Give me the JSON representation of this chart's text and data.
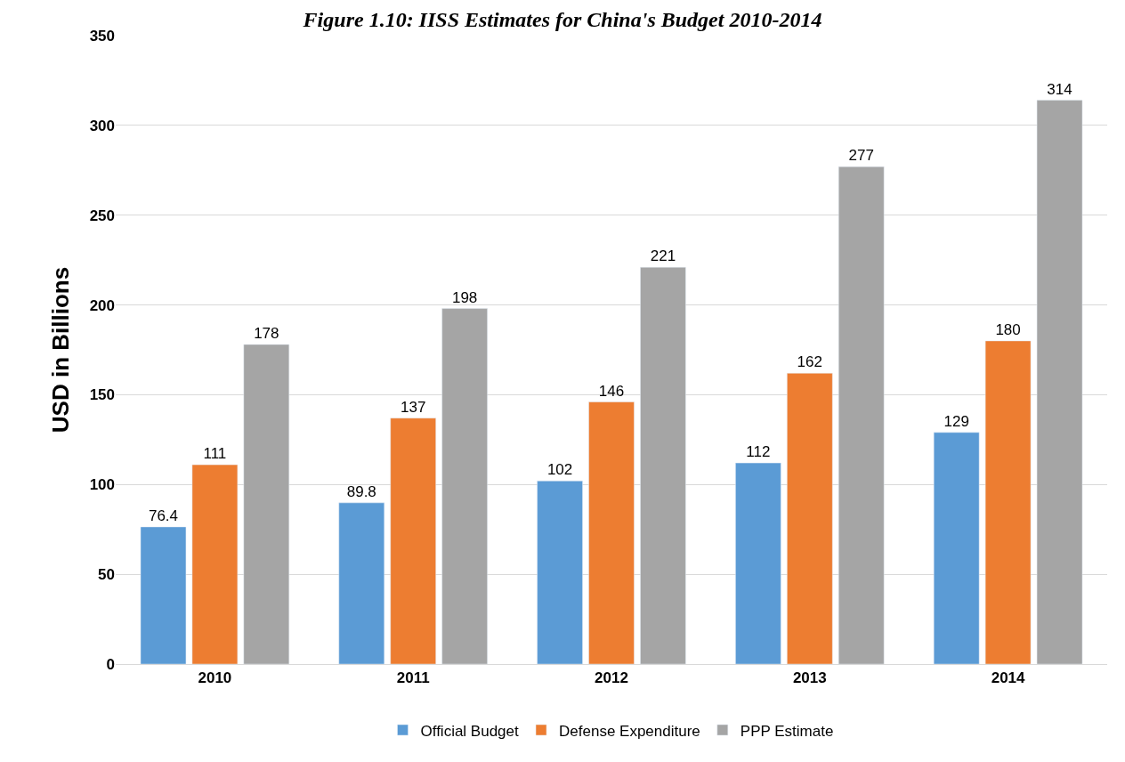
{
  "chart_data": {
    "type": "bar",
    "title": "Figure 1.10: IISS Estimates for China's Budget 2010-2014",
    "categories": [
      "2010",
      "2011",
      "2012",
      "2013",
      "2014"
    ],
    "series": [
      {
        "name": "Official Budget",
        "color": "#5b9bd5",
        "values": [
          76.4,
          89.8,
          102,
          112,
          129
        ]
      },
      {
        "name": "Defense Expenditure",
        "color": "#ed7d31",
        "values": [
          111,
          137,
          146,
          162,
          180
        ]
      },
      {
        "name": "PPP Estimate",
        "color": "#a5a5a5",
        "values": [
          178,
          198,
          221,
          277,
          314
        ]
      }
    ],
    "ylabel": "USD in Billions",
    "ylim": [
      0,
      350
    ],
    "yticks": [
      0,
      50,
      100,
      150,
      200,
      250,
      300,
      350
    ],
    "grid": "y",
    "legend": "bottom",
    "data_labels": true
  }
}
